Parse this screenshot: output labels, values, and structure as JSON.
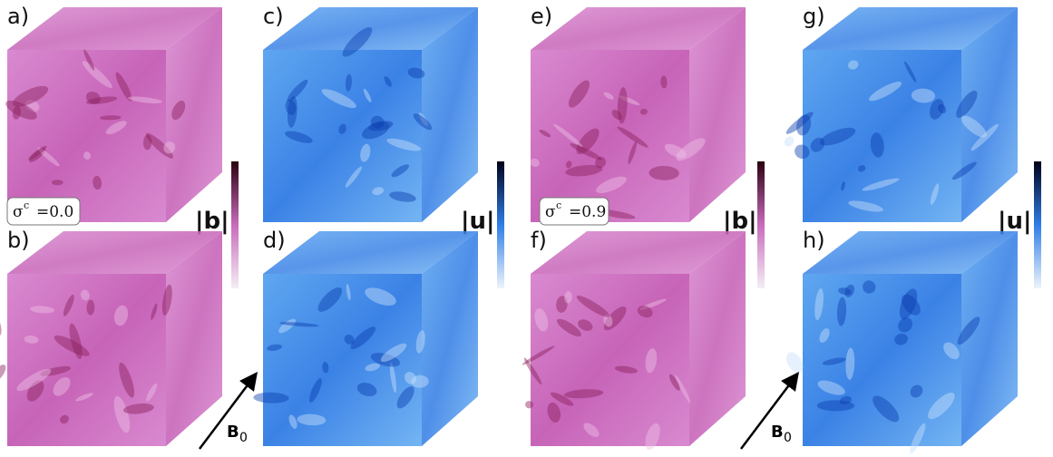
{
  "panels": [
    {
      "label": "a)"
    },
    {
      "label": "b)"
    },
    {
      "label": "c)"
    },
    {
      "label": "d)"
    },
    {
      "label": "e)"
    },
    {
      "label": "f)"
    },
    {
      "label": "g)"
    },
    {
      "label": "h)"
    }
  ],
  "annotations": [
    {
      "symbol": "σ",
      "superscript": "c",
      "value": "=0.0"
    },
    {
      "symbol": "σ",
      "superscript": "c",
      "value": "=0.9"
    }
  ],
  "colorbars": [
    {
      "label": "|b|"
    },
    {
      "label": "|u|"
    },
    {
      "label": "|b|"
    },
    {
      "label": "|u|"
    }
  ],
  "field_labels": [
    {
      "symbol": "B",
      "subscript": "0"
    },
    {
      "symbol": "B",
      "subscript": "0"
    }
  ]
}
